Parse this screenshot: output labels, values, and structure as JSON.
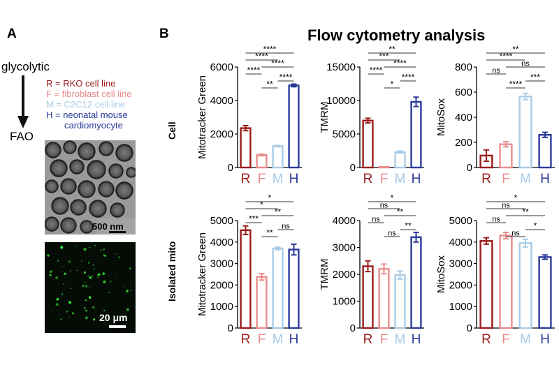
{
  "panels": {
    "a": "A",
    "b": "B"
  },
  "title": "Flow cytometry analysis",
  "schematic": {
    "top": "glycolytic",
    "bottom": "FAO"
  },
  "legend": [
    {
      "text": "R = RKO cell line",
      "color": "#9b1b1b"
    },
    {
      "text": "F = fibroblast cell line",
      "color": "#e88c8c"
    },
    {
      "text": "M = C2C12 cell line",
      "color": "#a9cbe6"
    },
    {
      "text": "H = neonatal mouse",
      "color": "#2a3a99"
    },
    {
      "text": "cardiomyocyte",
      "color": "#2a3a99"
    }
  ],
  "images": {
    "em_scale": "500 nm",
    "fluor_scale": "20 μm"
  },
  "row_labels": [
    "Cell",
    "Isolated mito"
  ],
  "colors": {
    "R": "#9b1b1b",
    "F": "#e88c8c",
    "M": "#a9cbe6",
    "H": "#2a3a99"
  },
  "chart_data": [
    {
      "type": "bar",
      "row": "Cell",
      "ylabel": "Mitotracker Green",
      "categories": [
        "R",
        "F",
        "M",
        "H"
      ],
      "values": [
        2350,
        750,
        1280,
        4900
      ],
      "errors": [
        150,
        50,
        40,
        80
      ],
      "ylim": [
        0,
        6000
      ],
      "yticks": [
        0,
        2000,
        4000,
        6000
      ],
      "sig": [
        {
          "a": 0,
          "b": 3,
          "text": "****"
        },
        {
          "a": 0,
          "b": 2,
          "text": "****"
        },
        {
          "a": 1,
          "b": 3,
          "text": "****"
        },
        {
          "a": 0,
          "b": 1,
          "text": "****"
        },
        {
          "a": 2,
          "b": 3,
          "text": "****"
        },
        {
          "a": 1,
          "b": 2,
          "text": "**"
        }
      ]
    },
    {
      "type": "bar",
      "row": "Cell",
      "ylabel": "TMRM",
      "categories": [
        "R",
        "F",
        "M",
        "H"
      ],
      "values": [
        7000,
        80,
        2300,
        9800
      ],
      "errors": [
        350,
        30,
        150,
        700
      ],
      "ylim": [
        0,
        15000
      ],
      "yticks": [
        0,
        5000,
        10000,
        15000
      ],
      "sig": [
        {
          "a": 0,
          "b": 3,
          "text": "**"
        },
        {
          "a": 0,
          "b": 2,
          "text": "***"
        },
        {
          "a": 1,
          "b": 3,
          "text": "****"
        },
        {
          "a": 0,
          "b": 1,
          "text": "****"
        },
        {
          "a": 2,
          "b": 3,
          "text": "****"
        },
        {
          "a": 1,
          "b": 2,
          "text": "*"
        }
      ]
    },
    {
      "type": "bar",
      "row": "Cell",
      "ylabel": "MitoSox",
      "categories": [
        "R",
        "F",
        "M",
        "H"
      ],
      "values": [
        95,
        185,
        565,
        260
      ],
      "errors": [
        45,
        20,
        25,
        20
      ],
      "ylim": [
        0,
        800
      ],
      "yticks": [
        0,
        200,
        400,
        600,
        800
      ],
      "sig": [
        {
          "a": 0,
          "b": 3,
          "text": "**"
        },
        {
          "a": 0,
          "b": 2,
          "text": "****"
        },
        {
          "a": 1,
          "b": 3,
          "text": "ns"
        },
        {
          "a": 0,
          "b": 1,
          "text": "ns"
        },
        {
          "a": 2,
          "b": 3,
          "text": "***"
        },
        {
          "a": 1,
          "b": 2,
          "text": "****"
        }
      ]
    },
    {
      "type": "bar",
      "row": "Isolated mito",
      "ylabel": "Mitotracker Green",
      "categories": [
        "R",
        "F",
        "M",
        "H"
      ],
      "values": [
        4550,
        2380,
        3700,
        3650
      ],
      "errors": [
        200,
        150,
        60,
        250
      ],
      "ylim": [
        0,
        5000
      ],
      "yticks": [
        0,
        1000,
        2000,
        3000,
        4000,
        5000
      ],
      "sig": [
        {
          "a": 0,
          "b": 3,
          "text": "*"
        },
        {
          "a": 0,
          "b": 2,
          "text": "*"
        },
        {
          "a": 1,
          "b": 3,
          "text": "**"
        },
        {
          "a": 0,
          "b": 1,
          "text": "***"
        },
        {
          "a": 2,
          "b": 3,
          "text": "ns"
        },
        {
          "a": 1,
          "b": 2,
          "text": "**"
        }
      ]
    },
    {
      "type": "bar",
      "row": "Isolated mito",
      "ylabel": "TMRM",
      "categories": [
        "R",
        "F",
        "M",
        "H"
      ],
      "values": [
        2300,
        2200,
        1970,
        3380
      ],
      "errors": [
        200,
        180,
        150,
        180
      ],
      "ylim": [
        0,
        4000
      ],
      "yticks": [
        0,
        1000,
        2000,
        3000,
        4000
      ],
      "sig": [
        {
          "a": 0,
          "b": 3,
          "text": "*"
        },
        {
          "a": 0,
          "b": 2,
          "text": "ns"
        },
        {
          "a": 1,
          "b": 3,
          "text": "**"
        },
        {
          "a": 0,
          "b": 1,
          "text": "ns"
        },
        {
          "a": 2,
          "b": 3,
          "text": "**"
        },
        {
          "a": 1,
          "b": 2,
          "text": "ns"
        }
      ]
    },
    {
      "type": "bar",
      "row": "Isolated mito",
      "ylabel": "MitoSox",
      "categories": [
        "R",
        "F",
        "M",
        "H"
      ],
      "values": [
        4050,
        4300,
        3950,
        3300
      ],
      "errors": [
        150,
        150,
        180,
        100
      ],
      "ylim": [
        0,
        5000
      ],
      "yticks": [
        0,
        1000,
        2000,
        3000,
        4000,
        5000
      ],
      "sig": [
        {
          "a": 0,
          "b": 3,
          "text": "*"
        },
        {
          "a": 0,
          "b": 2,
          "text": "ns"
        },
        {
          "a": 1,
          "b": 3,
          "text": "**"
        },
        {
          "a": 0,
          "b": 1,
          "text": "ns"
        },
        {
          "a": 2,
          "b": 3,
          "text": "*"
        },
        {
          "a": 1,
          "b": 2,
          "text": "ns"
        }
      ]
    }
  ]
}
